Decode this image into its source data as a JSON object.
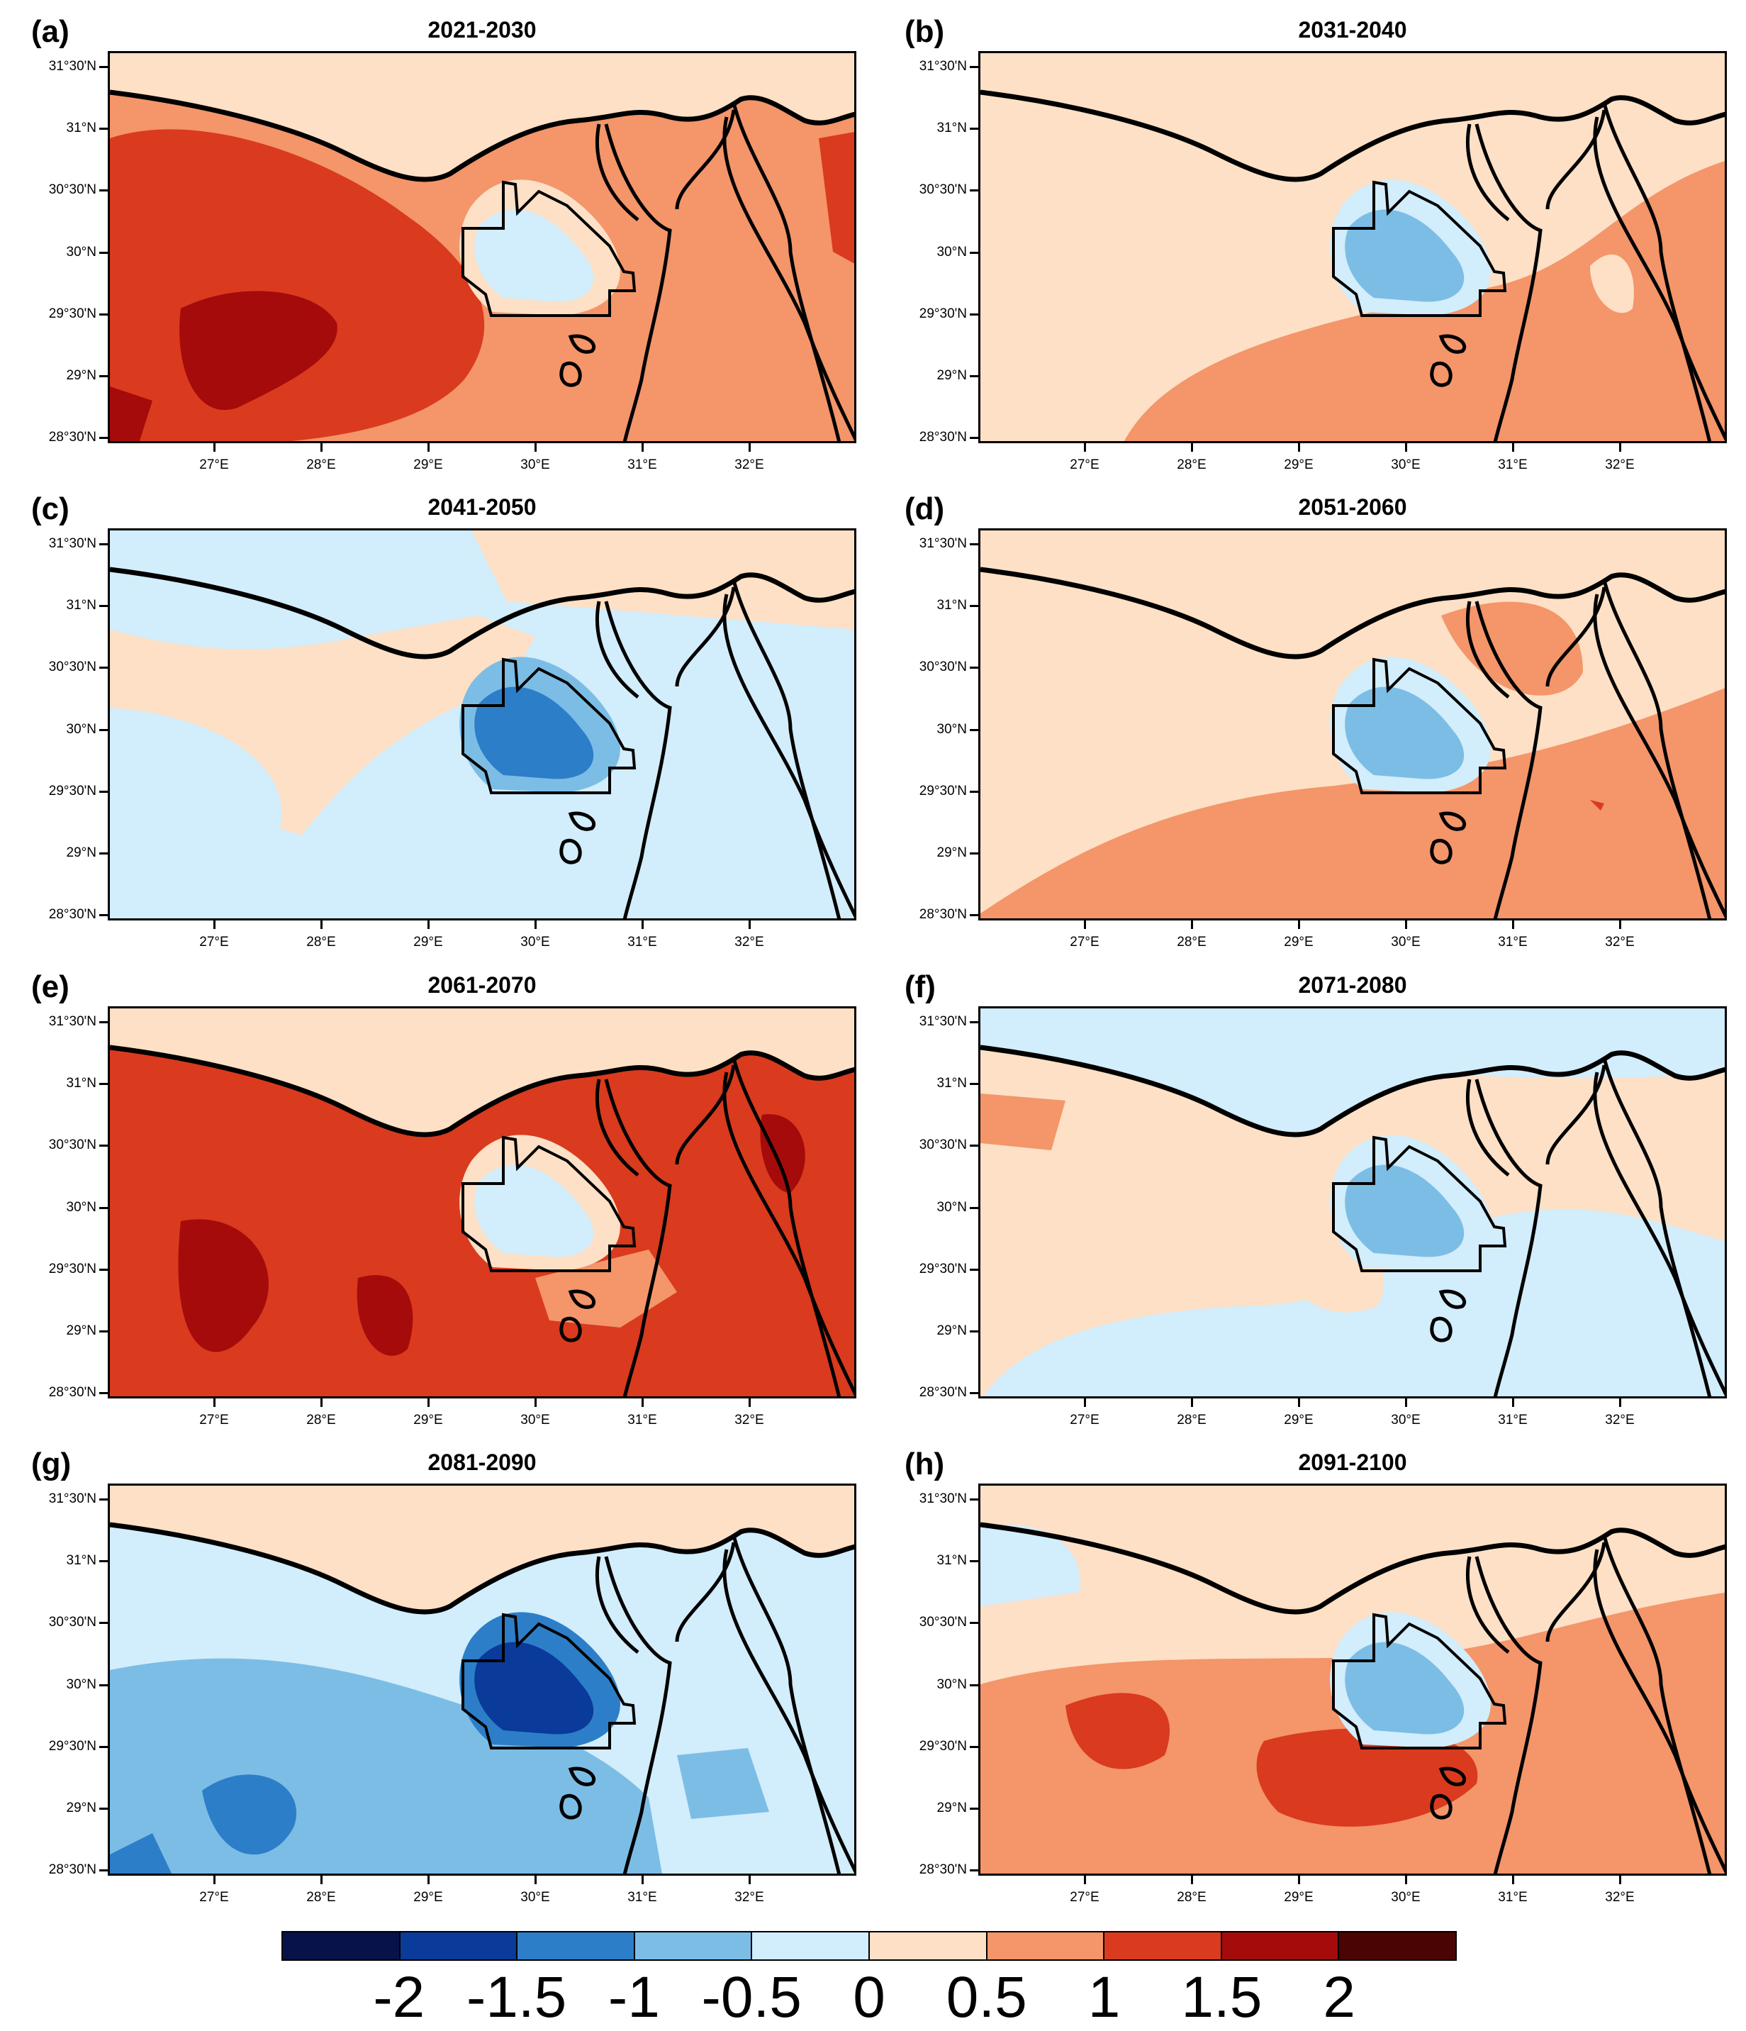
{
  "panels": [
    {
      "letter": "(a)",
      "title": "2021-2030"
    },
    {
      "letter": "(b)",
      "title": "2031-2040"
    },
    {
      "letter": "(c)",
      "title": "2041-2050"
    },
    {
      "letter": "(d)",
      "title": "2051-2060"
    },
    {
      "letter": "(e)",
      "title": "2061-2070"
    },
    {
      "letter": "(f)",
      "title": "2071-2080"
    },
    {
      "letter": "(g)",
      "title": "2081-2090"
    },
    {
      "letter": "(h)",
      "title": "2091-2100"
    }
  ],
  "lat_labels": [
    "31°30'N",
    "31°N",
    "30°30'N",
    "30°N",
    "29°30'N",
    "29°N",
    "28°30'N"
  ],
  "lon_labels": [
    "27°E",
    "28°E",
    "29°E",
    "30°E",
    "31°E",
    "32°E"
  ],
  "colorbar": {
    "labels": [
      "-2",
      "-1.5",
      "-1",
      "-0.5",
      "0",
      "0.5",
      "1",
      "1.5",
      "2"
    ],
    "colors": [
      "#08124a",
      "#0a3a9a",
      "#2d7ec8",
      "#7cbde6",
      "#d2edfb",
      "#fde0c5",
      "#f4956a",
      "#da3a1e",
      "#a50b0b",
      "#4a0404"
    ]
  }
}
